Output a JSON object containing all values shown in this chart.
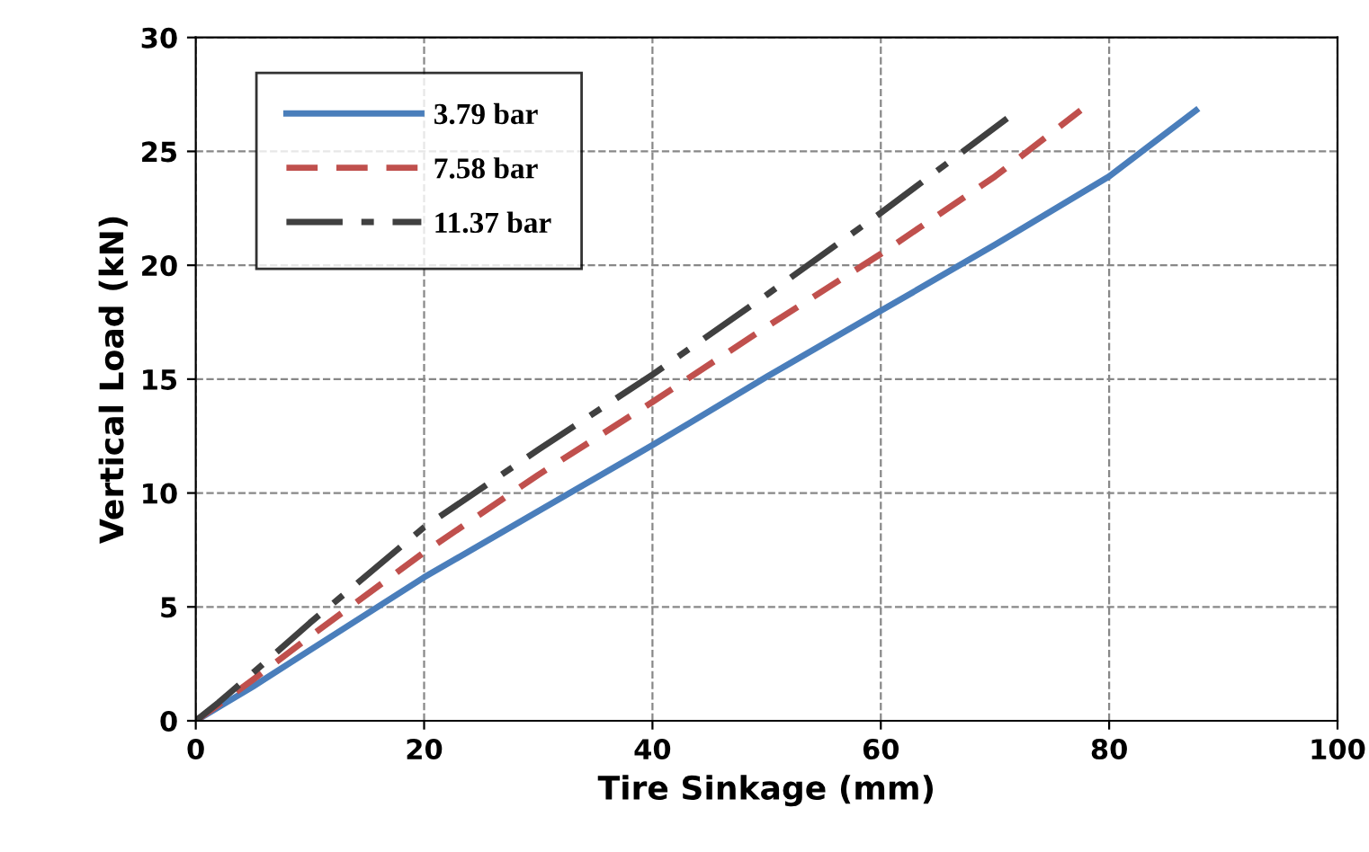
{
  "chart_data": {
    "type": "line",
    "xlabel": "Tire Sinkage (mm)",
    "ylabel": "Vertical Load (kN)",
    "xlim": [
      0,
      100
    ],
    "xticks": [
      0,
      20,
      40,
      60,
      80,
      100
    ],
    "ylim": [
      0,
      30
    ],
    "yticks": [
      0,
      5,
      10,
      15,
      20,
      25,
      30
    ],
    "grid": true,
    "legend": "top left",
    "marker": "none",
    "series": [
      {
        "name": "3.79 bar",
        "color": "#4a7ebb",
        "line_style": "solid",
        "x": [
          0,
          2,
          5,
          10,
          20,
          30,
          40,
          50,
          60,
          70,
          80,
          87.6
        ],
        "values": [
          0,
          0.6,
          1.5,
          3.1,
          6.3,
          9.2,
          12.1,
          15.1,
          18.0,
          20.9,
          23.9,
          26.8
        ]
      },
      {
        "name": "7.58 bar",
        "color": "#c0504d",
        "line_style": "dashed",
        "x": [
          0,
          2,
          5,
          10,
          20,
          30,
          40,
          50,
          60,
          70,
          77.5
        ],
        "values": [
          0,
          0.7,
          1.8,
          3.7,
          7.4,
          10.8,
          14.0,
          17.3,
          20.5,
          23.9,
          26.8
        ]
      },
      {
        "name": "11.37 bar",
        "color": "#404040",
        "line_style": "dashdot",
        "x": [
          0,
          2,
          5,
          10,
          20,
          30,
          40,
          50,
          60,
          71.2
        ],
        "values": [
          0,
          0.8,
          2.1,
          4.3,
          8.5,
          11.9,
          15.2,
          18.7,
          22.3,
          26.5
        ]
      }
    ]
  }
}
